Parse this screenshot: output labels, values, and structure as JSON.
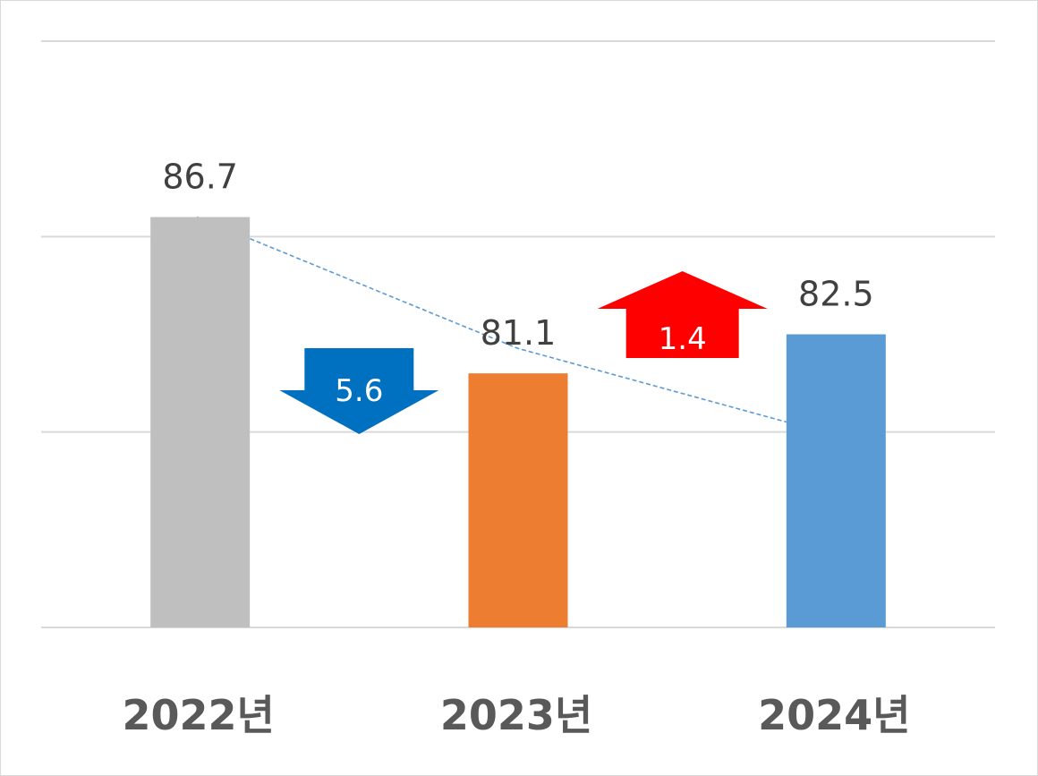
{
  "chart_data": {
    "type": "bar",
    "categories": [
      "2022년",
      "2023년",
      "2024년"
    ],
    "values": [
      86.7,
      81.1,
      82.5
    ],
    "value_labels": [
      "86.7",
      "81.1",
      "82.5"
    ],
    "bar_colors": [
      "#bfbfbf",
      "#ed7d31",
      "#5b9bd5"
    ],
    "ylim": [
      72,
      93
    ],
    "grid": true,
    "legend": "none",
    "trend_line": {
      "color": "#5b9bd5",
      "style": "dashed"
    },
    "annotations": [
      {
        "type": "down-arrow",
        "text": "5.6",
        "color": "#0070c0",
        "between": [
          0,
          1
        ]
      },
      {
        "type": "up-arrow",
        "text": "1.4",
        "color": "#ff0000",
        "between": [
          1,
          2
        ]
      }
    ]
  }
}
